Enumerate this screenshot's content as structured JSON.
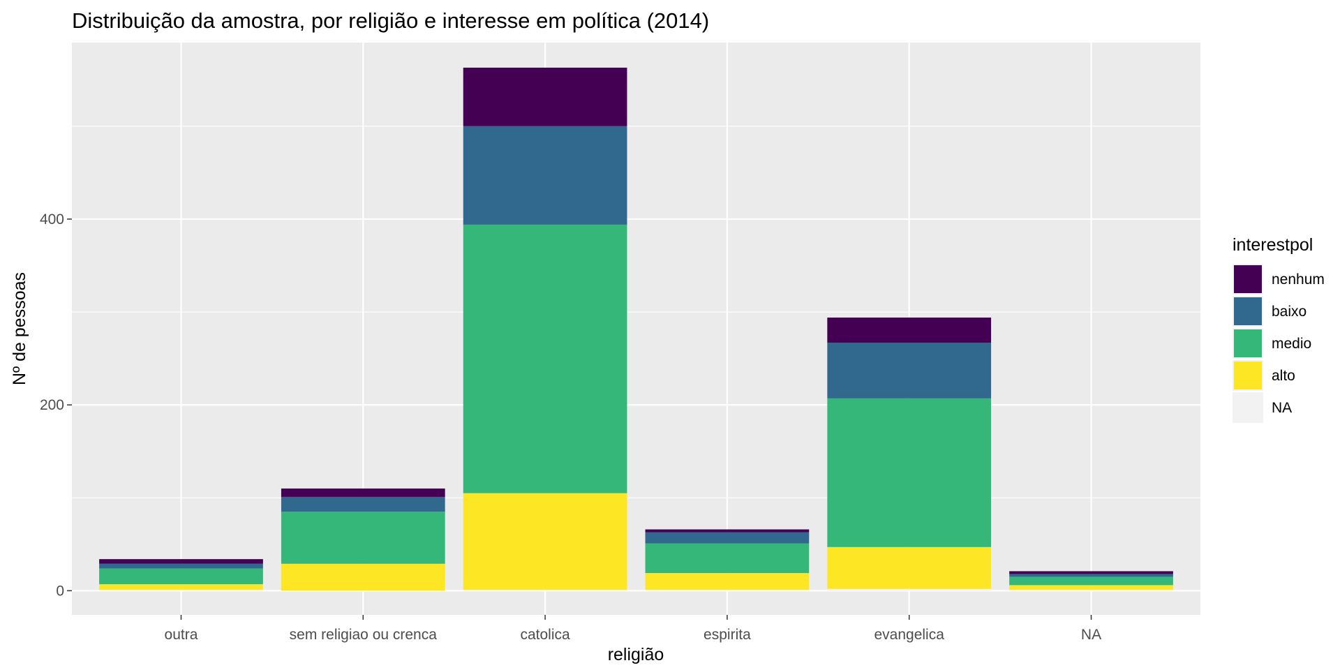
{
  "chart_data": {
    "type": "bar",
    "stacked": true,
    "title": "Distribuição da amostra, por religião e interesse em política (2014)",
    "xlabel": "religião",
    "ylabel": "Nº de pessoas",
    "categories": [
      "outra",
      "sem religiao ou crenca",
      "catolica",
      "espirita",
      "evangelica",
      "NA"
    ],
    "yticks": [
      0,
      200,
      400
    ],
    "ylim": [
      -26,
      590
    ],
    "grid": true,
    "legend": {
      "title": "interestpol",
      "position": "right",
      "entries": [
        "nenhum",
        "baixo",
        "medio",
        "alto",
        "NA"
      ]
    },
    "series": [
      {
        "name": "NA",
        "color": "#f2f2f2",
        "values": [
          1,
          0,
          1,
          1,
          2,
          1
        ]
      },
      {
        "name": "alto",
        "color": "#fde725",
        "values": [
          6,
          29,
          104,
          18,
          45,
          5
        ]
      },
      {
        "name": "medio",
        "color": "#35b779",
        "values": [
          17,
          56,
          289,
          32,
          160,
          9
        ]
      },
      {
        "name": "baixo",
        "color": "#31688e",
        "values": [
          5,
          16,
          106,
          12,
          60,
          3
        ]
      },
      {
        "name": "nenhum",
        "color": "#440154",
        "values": [
          5,
          9,
          63,
          3,
          27,
          3
        ]
      }
    ]
  }
}
